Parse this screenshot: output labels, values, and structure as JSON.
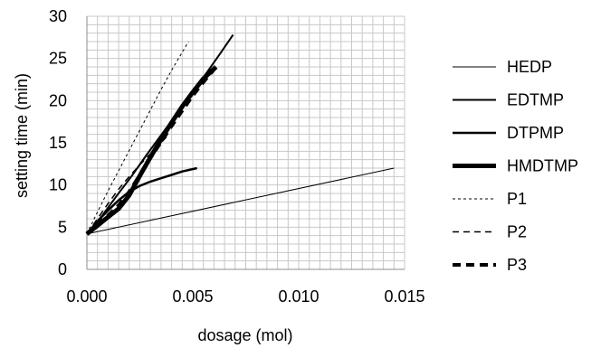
{
  "chart_data": {
    "type": "line",
    "title": "",
    "xlabel": "dosage (mol)",
    "ylabel": "setting time (min)",
    "xlim": [
      0,
      0.015
    ],
    "ylim": [
      0,
      30
    ],
    "xticks": [
      0,
      0.005,
      0.01,
      0.015
    ],
    "xtick_labels": [
      "0.000",
      "0.005",
      "0.010",
      "0.015"
    ],
    "yticks": [
      0,
      5,
      10,
      15,
      20,
      25,
      30
    ],
    "ytick_labels": [
      "0",
      "5",
      "10",
      "15",
      "20",
      "25",
      "30"
    ],
    "grid": true,
    "legend_position": "right",
    "series": [
      {
        "name": "HEDP",
        "style": "thin-solid",
        "x": [
          0,
          0.0145
        ],
        "y": [
          4.2,
          12.0
        ]
      },
      {
        "name": "EDTMP",
        "style": "solid",
        "x": [
          0,
          0.0007,
          0.0014,
          0.0021,
          0.0028,
          0.0035,
          0.0042,
          0.0049,
          0.0056,
          0.0063,
          0.0069
        ],
        "y": [
          4.2,
          6.3,
          8.7,
          11.0,
          13.5,
          15.9,
          18.3,
          20.7,
          23.1,
          25.6,
          27.8
        ]
      },
      {
        "name": "DTPMP",
        "style": "medium-solid",
        "x": [
          0,
          0.0005,
          0.001,
          0.0015,
          0.002,
          0.0025,
          0.003,
          0.0035,
          0.004,
          0.0045,
          0.0052
        ],
        "y": [
          4.2,
          5.7,
          7.0,
          8.2,
          9.2,
          9.9,
          10.4,
          10.8,
          11.2,
          11.6,
          12.0
        ]
      },
      {
        "name": "HMDTMP",
        "style": "thick-solid",
        "x": [
          0,
          0.0005,
          0.001,
          0.0015,
          0.002,
          0.0025,
          0.003,
          0.0035,
          0.004,
          0.0045,
          0.005,
          0.0055,
          0.0061
        ],
        "y": [
          4.2,
          5.2,
          6.2,
          7.2,
          8.8,
          11.1,
          13.3,
          15.4,
          17.4,
          19.3,
          21.0,
          22.6,
          24.0
        ]
      },
      {
        "name": "P1",
        "style": "thin-dotted",
        "x": [
          0,
          0.0005,
          0.001,
          0.0015,
          0.002,
          0.0025,
          0.003,
          0.0035,
          0.004,
          0.0048
        ],
        "y": [
          4.2,
          6.8,
          9.3,
          11.7,
          14.1,
          16.5,
          18.9,
          21.3,
          23.6,
          27.0
        ]
      },
      {
        "name": "P2",
        "style": "dashed",
        "x": [
          0,
          0.0005,
          0.001,
          0.0015,
          0.002,
          0.0025,
          0.003,
          0.0035,
          0.0038
        ],
        "y": [
          4.2,
          6.0,
          7.8,
          9.5,
          11.0,
          12.4,
          13.7,
          15.0,
          15.8
        ]
      },
      {
        "name": "P3",
        "style": "thick-dashed",
        "x": [
          0,
          0.0005,
          0.001,
          0.0015,
          0.002,
          0.0025,
          0.003,
          0.0035,
          0.004,
          0.0045,
          0.005,
          0.0055,
          0.006
        ],
        "y": [
          4.2,
          5.3,
          6.4,
          7.6,
          9.2,
          11.2,
          13.2,
          15.1,
          17.0,
          18.8,
          20.6,
          22.2,
          23.7
        ]
      }
    ]
  }
}
